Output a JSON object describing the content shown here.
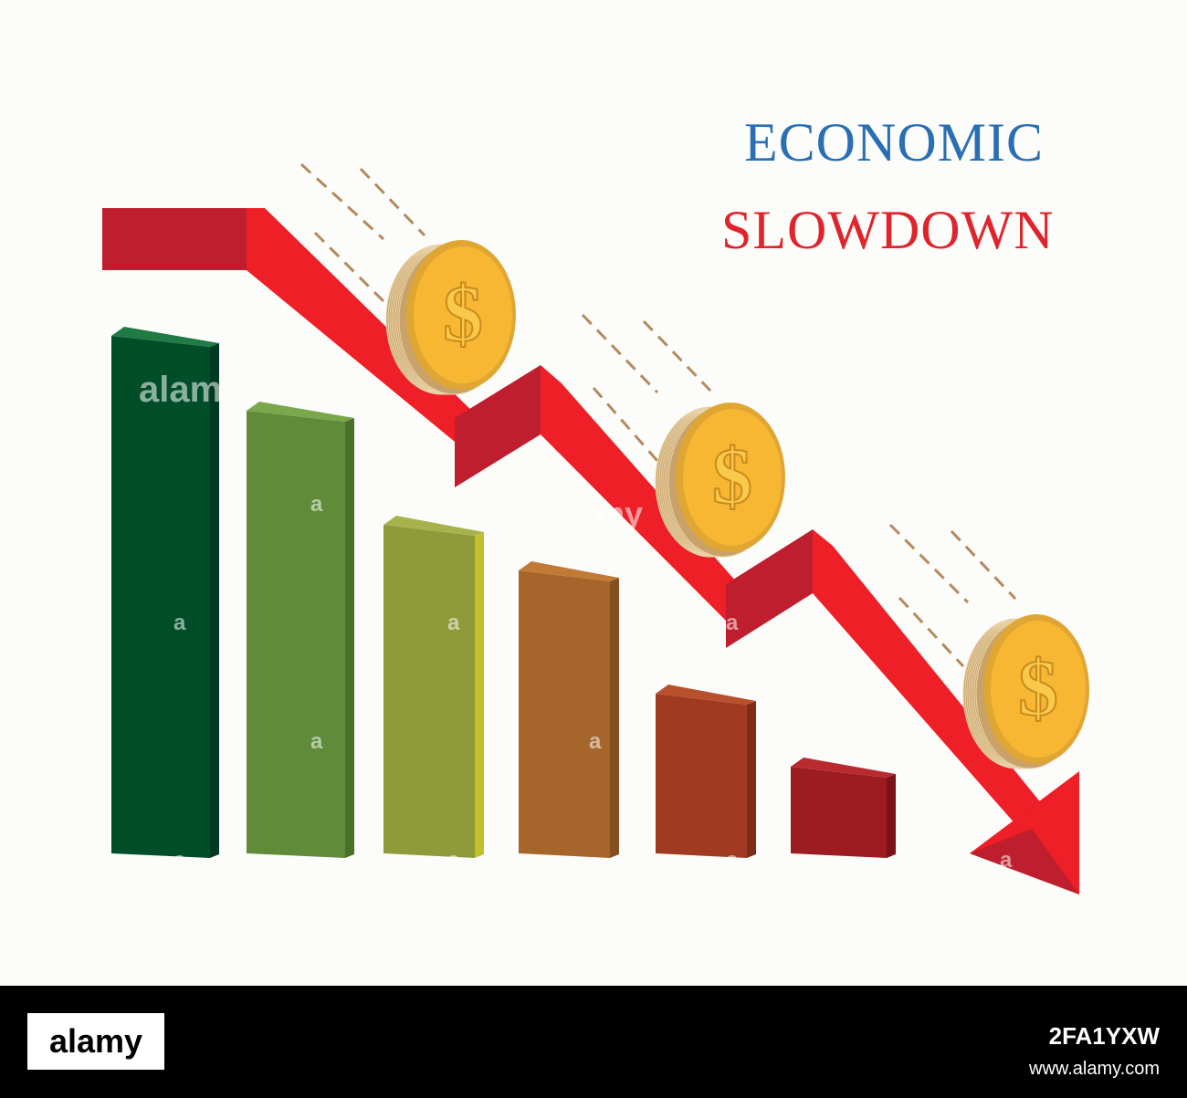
{
  "title": {
    "line1": "ECONOMIC",
    "line2": "SLOWDOWN",
    "line1_color": "#2a6fb4",
    "line2_color": "#e0242b"
  },
  "bars": [
    {
      "front": "#004d2a",
      "top": "#1f7a43",
      "side": "#003a20"
    },
    {
      "front": "#608b38",
      "top": "#7aa64c",
      "side": "#4a7029"
    },
    {
      "front": "#8f9a3a",
      "top": "#a8b24c",
      "side": "#c0c12c"
    },
    {
      "front": "#a6652a",
      "top": "#c07a36",
      "side": "#844e1e"
    },
    {
      "front": "#a03b22",
      "top": "#b8502e",
      "side": "#7e2b17"
    },
    {
      "front": "#9c1c22",
      "top": "#b82a2e",
      "side": "#7a1218"
    }
  ],
  "arrow": {
    "color": "#ee1f26",
    "shade": "#be1e2d"
  },
  "coin": {
    "symbol": "$",
    "face": "#f7b733",
    "rim": "#e0a633",
    "edge": "#c9a26a"
  },
  "watermark": {
    "text_1": "alam",
    "text_2": "my",
    "text_3": "a"
  },
  "footer": {
    "logo": "alamy",
    "id": "2FA1YXW",
    "url": "www.alamy.com"
  }
}
